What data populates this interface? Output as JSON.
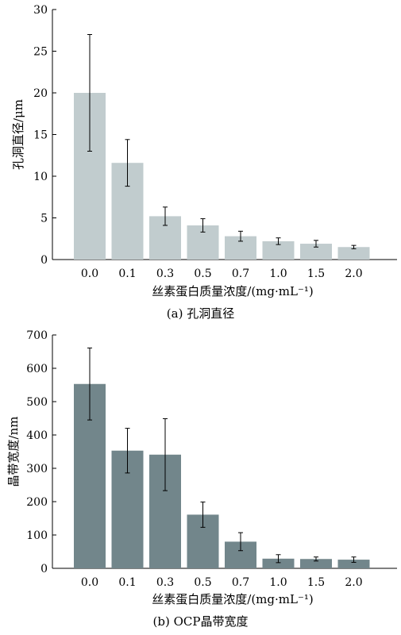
{
  "chart_data": [
    {
      "type": "bar",
      "categories": [
        "0.0",
        "0.1",
        "0.3",
        "0.5",
        "0.7",
        "1.0",
        "1.5",
        "2.0"
      ],
      "values": [
        20,
        11.6,
        5.2,
        4.1,
        2.8,
        2.2,
        1.9,
        1.5
      ],
      "errors": [
        7,
        2.8,
        1.1,
        0.8,
        0.6,
        0.4,
        0.4,
        0.2
      ],
      "xlabel": "丝素蛋白质量浓度/(mg·mL⁻¹)",
      "ylabel": "孔洞直径/μm",
      "ylim": [
        0,
        30
      ],
      "yticks": [
        0,
        5,
        10,
        15,
        20,
        25,
        30
      ],
      "caption": "(a)  孔洞直径",
      "bar_color": "#c1ccce",
      "grid": false
    },
    {
      "type": "bar",
      "categories": [
        "0.0",
        "0.1",
        "0.3",
        "0.5",
        "0.7",
        "1.0",
        "1.5",
        "2.0"
      ],
      "values": [
        553,
        353,
        341,
        161,
        80,
        29,
        28,
        26
      ],
      "errors": [
        108,
        67,
        108,
        38,
        27,
        12,
        6,
        8
      ],
      "xlabel": "丝素蛋白质量浓度/(mg·mL⁻¹)",
      "ylabel": "晶带宽度/nm",
      "ylim": [
        0,
        700
      ],
      "yticks": [
        0,
        100,
        200,
        300,
        400,
        500,
        600,
        700
      ],
      "caption": "(b)  OCP晶带宽度",
      "bar_color": "#72868b",
      "grid": false
    }
  ]
}
